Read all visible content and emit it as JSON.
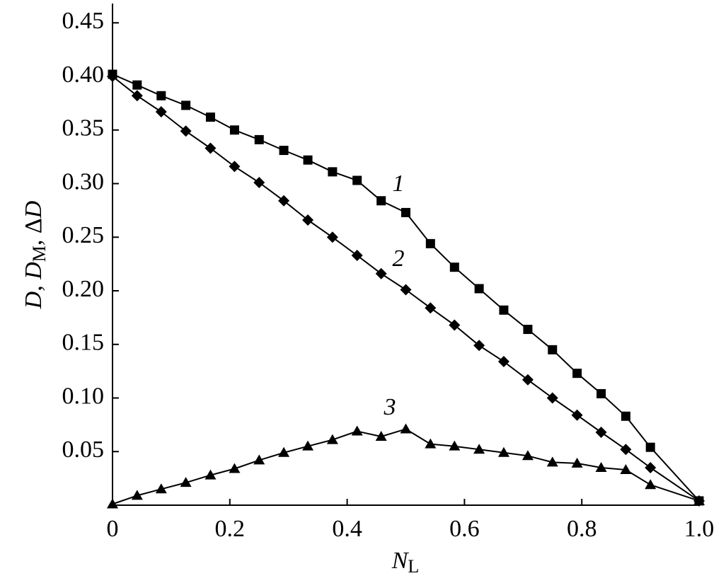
{
  "chart_data": {
    "type": "line",
    "xlabel_parts": [
      "N",
      "L"
    ],
    "ylabel_parts": [
      "D",
      ", ",
      "D",
      "M",
      ", Δ",
      "D"
    ],
    "x": [
      0,
      0.042,
      0.083,
      0.125,
      0.167,
      0.208,
      0.25,
      0.292,
      0.333,
      0.375,
      0.417,
      0.458,
      0.5,
      0.542,
      0.583,
      0.625,
      0.667,
      0.708,
      0.75,
      0.792,
      0.833,
      0.875,
      0.917,
      1.0
    ],
    "series": [
      {
        "name": "1",
        "marker": "square",
        "color": "#000000",
        "values": [
          0.402,
          0.392,
          0.382,
          0.373,
          0.362,
          0.35,
          0.341,
          0.331,
          0.322,
          0.311,
          0.303,
          0.284,
          0.273,
          0.244,
          0.222,
          0.202,
          0.182,
          0.164,
          0.145,
          0.123,
          0.104,
          0.083,
          0.054,
          0.004
        ]
      },
      {
        "name": "2",
        "marker": "diamond",
        "color": "#000000",
        "values": [
          0.4,
          0.382,
          0.367,
          0.349,
          0.333,
          0.316,
          0.301,
          0.284,
          0.266,
          0.25,
          0.233,
          0.216,
          0.201,
          0.184,
          0.168,
          0.149,
          0.134,
          0.117,
          0.1,
          0.084,
          0.068,
          0.052,
          0.035,
          0.004
        ]
      },
      {
        "name": "3",
        "marker": "triangle",
        "color": "#000000",
        "values": [
          0.001,
          0.009,
          0.015,
          0.021,
          0.028,
          0.034,
          0.042,
          0.049,
          0.055,
          0.061,
          0.069,
          0.064,
          0.071,
          0.057,
          0.055,
          0.052,
          0.049,
          0.046,
          0.04,
          0.039,
          0.035,
          0.033,
          0.019,
          0.004
        ]
      }
    ],
    "xlim": [
      0,
      1
    ],
    "ylim": [
      0,
      0.468
    ],
    "xticks": [
      0,
      0.2,
      0.4,
      0.6,
      0.8,
      {
        "value": 1.0,
        "label": "1.0"
      }
    ],
    "yticks": [
      0.05,
      {
        "value": 0.1,
        "label": "0.10"
      },
      0.15,
      {
        "value": 0.2,
        "label": "0.20"
      },
      0.25,
      {
        "value": 0.3,
        "label": "0.30"
      },
      0.35,
      {
        "value": 0.4,
        "label": "0.40"
      },
      0.45
    ],
    "grid": false
  }
}
